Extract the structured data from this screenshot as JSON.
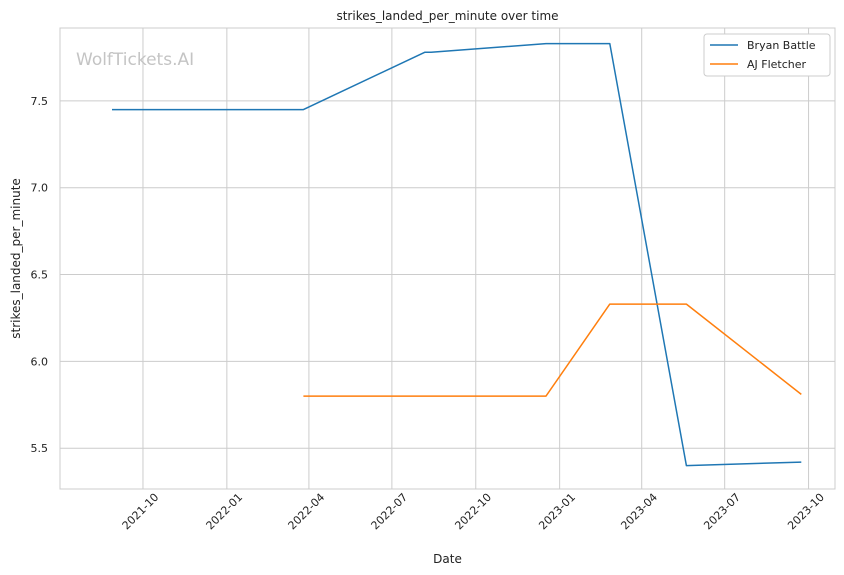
{
  "chart_data": {
    "type": "line",
    "title": "strikes_landed_per_minute over time",
    "xlabel": "Date",
    "ylabel": "strikes_landed_per_minute",
    "watermark": "WolfTickets.AI",
    "xlim": [
      "2021-07-02",
      "2023-10-30"
    ],
    "ylim": [
      5.265,
      7.92
    ],
    "x_ticks": [
      "2021-10",
      "2022-01",
      "2022-04",
      "2022-07",
      "2022-10",
      "2023-01",
      "2023-04",
      "2023-07",
      "2023-10"
    ],
    "y_ticks": [
      "5.5",
      "6.0",
      "6.5",
      "7.0",
      "7.5"
    ],
    "grid": true,
    "legend_position": "top-right",
    "series": [
      {
        "name": "Bryan Battle",
        "color": "#1f77b4",
        "points": [
          {
            "x": "2021-08-28",
            "y": 7.45
          },
          {
            "x": "2022-03-26",
            "y": 7.45
          },
          {
            "x": "2022-08-06",
            "y": 7.78
          },
          {
            "x": "2022-08-13",
            "y": 7.78
          },
          {
            "x": "2022-12-17",
            "y": 7.83
          },
          {
            "x": "2023-02-25",
            "y": 7.83
          },
          {
            "x": "2023-05-20",
            "y": 5.4
          },
          {
            "x": "2023-09-23",
            "y": 5.42
          }
        ]
      },
      {
        "name": "AJ Fletcher",
        "color": "#ff7f0e",
        "points": [
          {
            "x": "2022-03-26",
            "y": 5.8
          },
          {
            "x": "2022-12-17",
            "y": 5.8
          },
          {
            "x": "2023-02-25",
            "y": 6.33
          },
          {
            "x": "2023-05-20",
            "y": 6.33
          },
          {
            "x": "2023-09-23",
            "y": 5.81
          }
        ]
      }
    ]
  }
}
